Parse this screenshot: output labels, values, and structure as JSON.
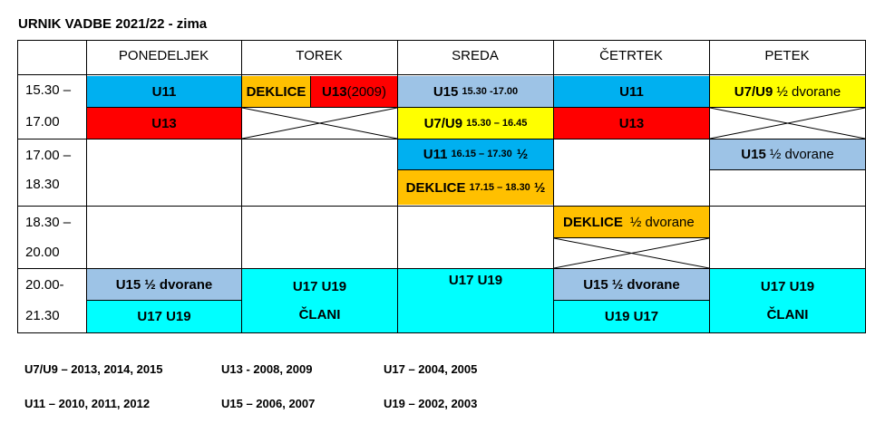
{
  "title": "URNIK VADBE 2021/22 - zima",
  "days": [
    "PONEDELJEK",
    "TOREK",
    "SREDA",
    "ČETRTEK",
    "PETEK"
  ],
  "times": {
    "t1a": "15.30 –",
    "t1b": "17.00",
    "t2a": "17.00 –",
    "t2b": "18.30",
    "t3a": "18.30 –",
    "t3b": "20.00",
    "t4a": "20.00-",
    "t4b": "21.30"
  },
  "cells": {
    "pon_u11": "U11",
    "pon_u13": "U13",
    "tor_deklice": "DEKLICE",
    "tor_u13": "U13",
    "tor_u13_year": "(2009)",
    "sre_u15": "U15",
    "sre_u15_time": "15.30 -17.00",
    "sre_u7u9": "U7/U9",
    "sre_u7u9_time": "15.30 – 16.45",
    "sre_u11": "U11",
    "sre_u11_time": "16.15 – 17.30",
    "sre_u11_half": "½",
    "sre_deklice": "DEKLICE",
    "sre_deklice_time": "17.15 – 18.30",
    "sre_deklice_half": "½",
    "cet_u11": "U11",
    "cet_u13": "U13",
    "cet_deklice": "DEKLICE",
    "cet_deklice_half": "½ dvorane",
    "pet_u7u9": "U7/U9",
    "pet_u7u9_half": "½ dvorane",
    "pet_u15": "U15",
    "pet_u15_half": "½ dvorane",
    "pon_u15": "U15",
    "pon_u15_half": "½ dvorane",
    "pon_u17u19": "U17 U19",
    "tor_u17u19": "U17 U19",
    "tor_clani": "ČLANI",
    "sre_u17u19": "U17 U19",
    "cet_u15": "U15",
    "cet_u15_half": "½ dvorane",
    "cet_u19u17": "U19 U17",
    "pet_u17u19": "U17 U19",
    "pet_clani": "ČLANI"
  },
  "legend": {
    "l1": "U7/U9 – 2013, 2014, 2015",
    "l2": "U13 - 2008, 2009",
    "l3": "U17 – 2004, 2005",
    "l4": "U11 – 2010, 2011, 2012",
    "l5": "U15 – 2006, 2007",
    "l6": "U19 – 2002, 2003"
  },
  "colors": {
    "blue": "#00b0f0",
    "red": "#ff0000",
    "yellow": "#ffff00",
    "orange": "#ffc000",
    "light_blue": "#9dc3e6",
    "cyan": "#00ffff"
  }
}
